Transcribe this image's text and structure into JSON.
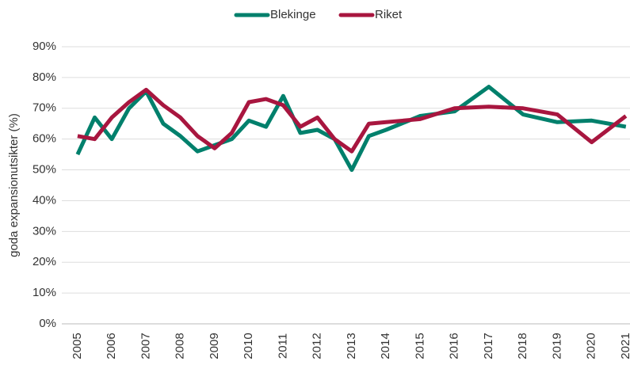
{
  "chart_data": {
    "type": "line",
    "y_label": "goda expansionutsikter (%)",
    "x": [
      2005,
      2005.5,
      2006,
      2006.5,
      2007,
      2007.5,
      2008,
      2008.5,
      2009,
      2009.5,
      2010,
      2010.5,
      2011,
      2011.5,
      2012,
      2012.5,
      2013,
      2013.5,
      2014,
      2015,
      2016,
      2017,
      2018,
      2019,
      2020,
      2021
    ],
    "series": [
      {
        "name": "Blekinge",
        "color": "#00806c",
        "values": [
          55,
          67,
          60,
          70,
          75.5,
          65,
          61,
          56,
          58,
          60,
          66,
          64,
          74,
          62,
          63,
          60,
          50,
          61,
          63,
          67.5,
          69,
          77,
          68,
          65.5,
          66,
          64
        ]
      },
      {
        "name": "Riket",
        "color": "#a8163f",
        "values": [
          61,
          60,
          67,
          72,
          76,
          71,
          67,
          61,
          57,
          62,
          72,
          73,
          71,
          64,
          67,
          60,
          56,
          65,
          65.5,
          66.5,
          70,
          70.5,
          70,
          68,
          59,
          67.5
        ]
      }
    ],
    "xlim": [
      2004.54,
      2021.12
    ],
    "xticks": [
      2005,
      2006,
      2007,
      2008,
      2009,
      2010,
      2011,
      2012,
      2013,
      2014,
      2015,
      2016,
      2017,
      2018,
      2019,
      2020,
      2021
    ],
    "ylim": [
      0,
      90
    ],
    "yticks": [
      {
        "value": 0,
        "label": "0%"
      },
      {
        "value": 10,
        "label": "10%"
      },
      {
        "value": 20,
        "label": "20%"
      },
      {
        "value": 30,
        "label": "30%"
      },
      {
        "value": 40,
        "label": "40%"
      },
      {
        "value": 50,
        "label": "50%"
      },
      {
        "value": 60,
        "label": "60%"
      },
      {
        "value": 70,
        "label": "70%"
      },
      {
        "value": 80,
        "label": "80%"
      },
      {
        "value": 90,
        "label": "90%"
      }
    ],
    "grid": true,
    "legend": "top"
  }
}
